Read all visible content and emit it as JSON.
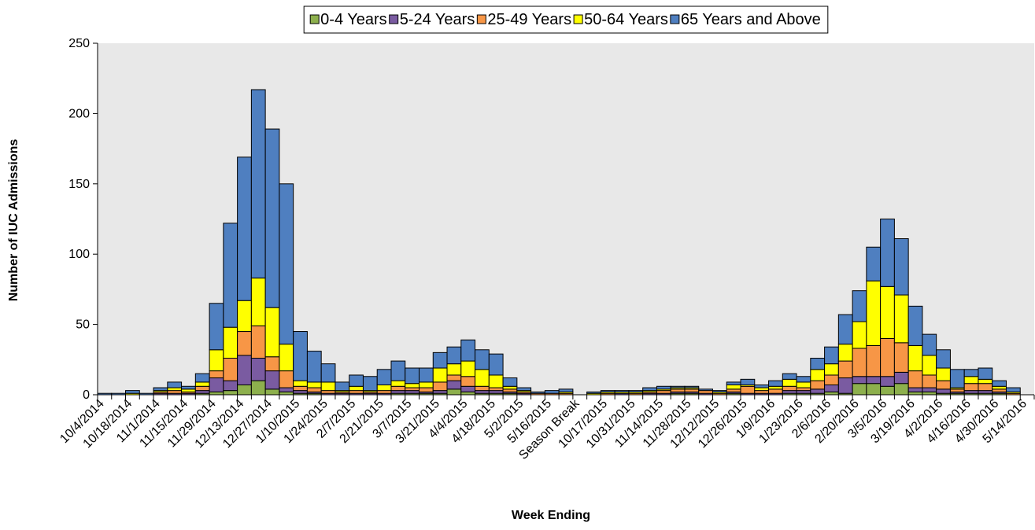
{
  "chart_data": {
    "type": "stacked_bar",
    "x_label": "Week Ending",
    "y_label": "Number of IUC Admissions",
    "categories": [
      "10/4/2014",
      null,
      "10/18/2014",
      null,
      "11/1/2014",
      null,
      "11/15/2014",
      null,
      "11/29/2014",
      null,
      "12/13/2014",
      null,
      "12/27/2014",
      null,
      "1/10/2015",
      null,
      "1/24/2015",
      null,
      "2/7/2015",
      null,
      "2/21/2015",
      null,
      "3/7/2015",
      null,
      "3/21/2015",
      null,
      "4/4/2015",
      null,
      "4/18/2015",
      null,
      "5/2/2015",
      null,
      "5/16/2015",
      null,
      "Season Break",
      null,
      "10/17/2015",
      null,
      "10/31/2015",
      null,
      "11/14/2015",
      null,
      "11/28/2015",
      null,
      "12/12/2015",
      null,
      "12/26/2015",
      null,
      "1/9/2016",
      null,
      "1/23/2016",
      null,
      "2/6/2016",
      null,
      "2/20/2016",
      null,
      "3/5/2016",
      null,
      "3/19/2016",
      null,
      "4/2/2016",
      null,
      "4/16/2016",
      null,
      "4/30/2016",
      null,
      "5/14/2016"
    ],
    "series": [
      {
        "name": "0-4 Years",
        "color": "#8db04d",
        "values": [
          0,
          0,
          0,
          0,
          0,
          0,
          0,
          1,
          2,
          3,
          7,
          10,
          4,
          2,
          1,
          1,
          0,
          0,
          0,
          0,
          0,
          1,
          1,
          1,
          1,
          4,
          2,
          1,
          1,
          1,
          0,
          0,
          0,
          0,
          0,
          0,
          0,
          0,
          0,
          0,
          0,
          1,
          1,
          0,
          0,
          1,
          0,
          0,
          0,
          1,
          1,
          1,
          2,
          1,
          8,
          8,
          6,
          8,
          2,
          2,
          1,
          1,
          1,
          1,
          1,
          0,
          0
        ]
      },
      {
        "name": "5-24 Years",
        "color": "#7a5ba1",
        "values": [
          0,
          0,
          0,
          0,
          1,
          1,
          1,
          2,
          10,
          7,
          21,
          16,
          13,
          3,
          2,
          1,
          1,
          1,
          1,
          1,
          1,
          2,
          2,
          1,
          2,
          6,
          4,
          2,
          2,
          1,
          1,
          0,
          0,
          0,
          0,
          0,
          0,
          1,
          0,
          1,
          1,
          1,
          1,
          1,
          0,
          1,
          1,
          1,
          1,
          2,
          2,
          3,
          5,
          11,
          5,
          5,
          7,
          8,
          3,
          3,
          3,
          1,
          2,
          2,
          1,
          0,
          0
        ]
      },
      {
        "name": "25-49 Years",
        "color": "#f79646",
        "values": [
          0,
          0,
          0,
          0,
          1,
          2,
          1,
          3,
          5,
          16,
          17,
          23,
          10,
          12,
          3,
          3,
          2,
          1,
          2,
          1,
          2,
          3,
          2,
          3,
          6,
          4,
          7,
          3,
          2,
          2,
          1,
          1,
          1,
          1,
          0,
          0,
          1,
          0,
          1,
          1,
          2,
          2,
          2,
          2,
          1,
          2,
          5,
          2,
          3,
          3,
          2,
          6,
          7,
          12,
          20,
          22,
          27,
          21,
          12,
          9,
          6,
          2,
          5,
          5,
          2,
          1,
          0
        ]
      },
      {
        "name": "50-64 Years",
        "color": "#ffff00",
        "values": [
          0,
          0,
          1,
          0,
          1,
          2,
          2,
          3,
          15,
          22,
          22,
          34,
          35,
          19,
          4,
          4,
          6,
          1,
          3,
          1,
          4,
          4,
          3,
          4,
          10,
          8,
          11,
          12,
          9,
          2,
          1,
          0,
          0,
          1,
          0,
          1,
          1,
          1,
          1,
          1,
          1,
          1,
          1,
          0,
          1,
          3,
          1,
          2,
          2,
          5,
          4,
          8,
          8,
          12,
          19,
          46,
          37,
          34,
          18,
          14,
          9,
          1,
          5,
          3,
          2,
          1,
          0
        ]
      },
      {
        "name": "65 Years and Above",
        "color": "#4f7fc0",
        "values": [
          1,
          1,
          2,
          1,
          2,
          4,
          2,
          6,
          33,
          74,
          102,
          134,
          127,
          114,
          35,
          22,
          13,
          6,
          8,
          10,
          11,
          14,
          11,
          10,
          11,
          12,
          15,
          14,
          15,
          6,
          2,
          1,
          2,
          2,
          0,
          1,
          1,
          1,
          1,
          2,
          2,
          1,
          1,
          1,
          1,
          2,
          4,
          2,
          4,
          4,
          4,
          8,
          12,
          21,
          22,
          24,
          48,
          40,
          28,
          15,
          13,
          13,
          5,
          8,
          4,
          3,
          0
        ]
      }
    ],
    "ylim": [
      0,
      250
    ],
    "yticks": [
      0,
      50,
      100,
      150,
      200,
      250
    ],
    "legend": "top",
    "grid": false,
    "plot_background": "#e8e8e8"
  }
}
